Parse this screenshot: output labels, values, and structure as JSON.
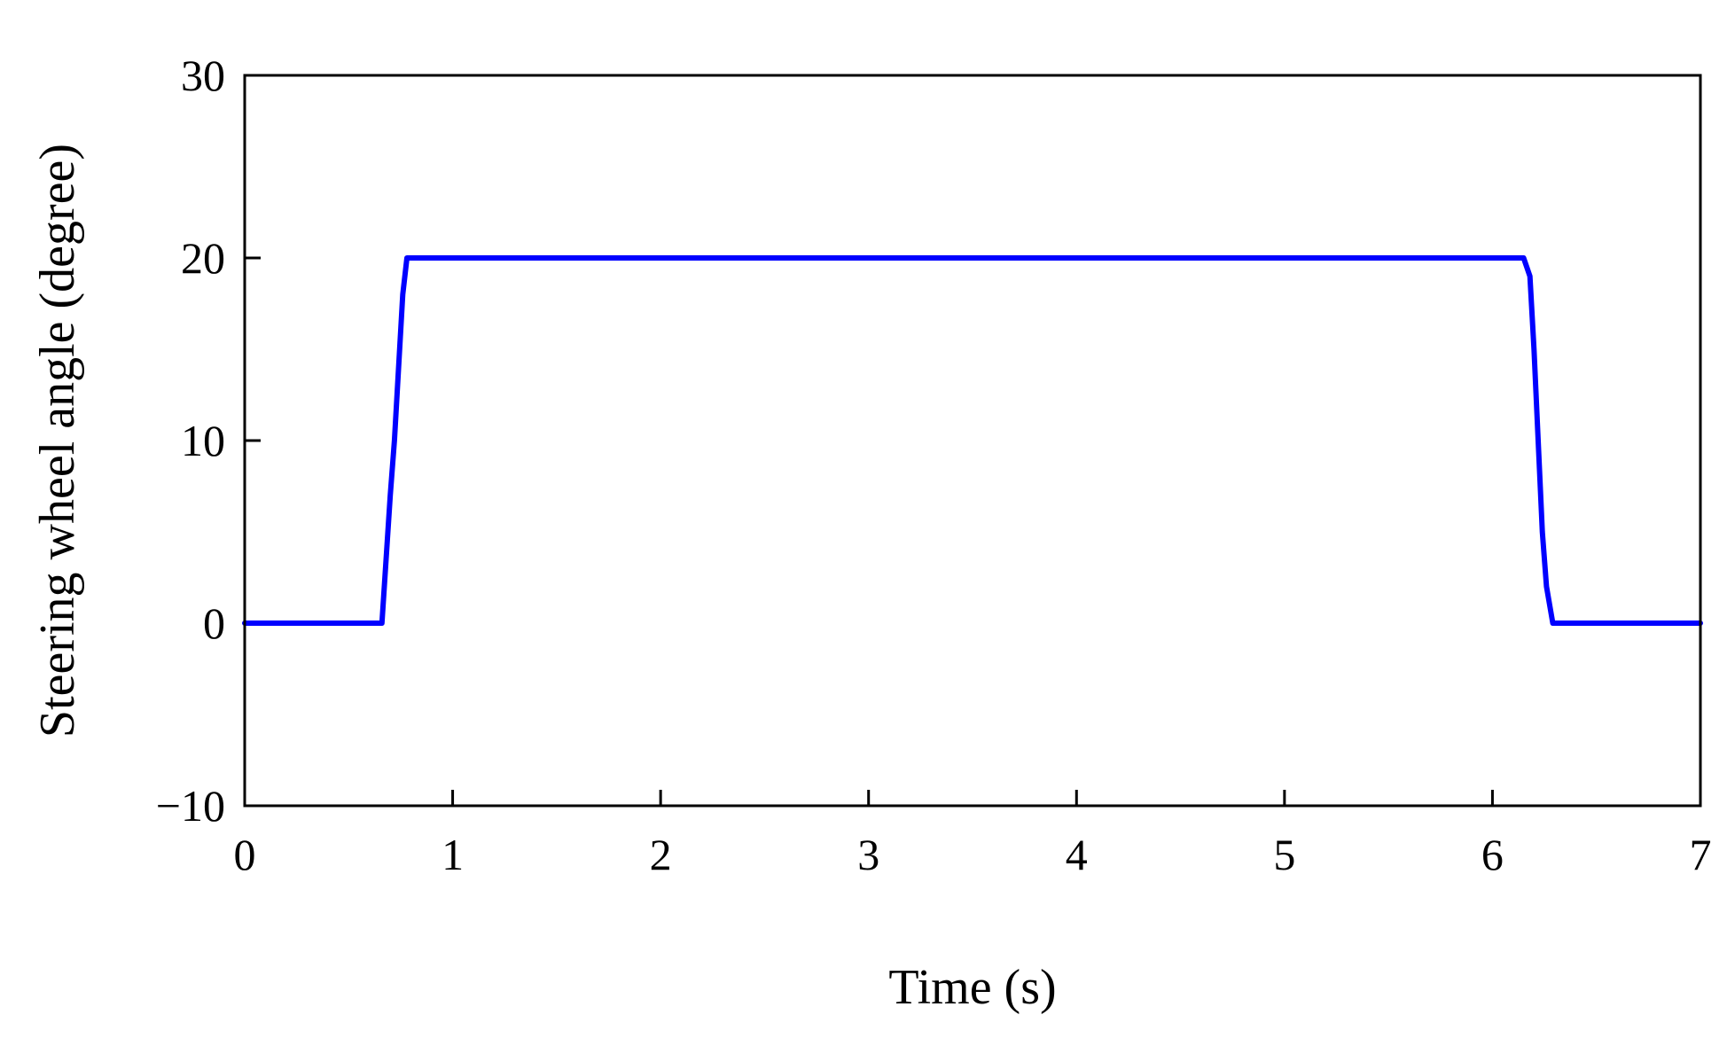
{
  "chart_data": {
    "type": "line",
    "title": "",
    "xlabel": "Time (s)",
    "ylabel": "Steering wheel angle (degree)",
    "xlim": [
      0,
      7
    ],
    "ylim": [
      -10,
      30
    ],
    "xticks": [
      0,
      1,
      2,
      3,
      4,
      5,
      6,
      7
    ],
    "xtick_labels": [
      "0",
      "1",
      "2",
      "3",
      "4",
      "5",
      "6",
      "7"
    ],
    "yticks": [
      -10,
      0,
      10,
      20,
      30
    ],
    "ytick_labels": [
      "−10",
      "0",
      "10",
      "20",
      "30"
    ],
    "grid": false,
    "legend": "none",
    "series": [
      {
        "color": "#0000ff",
        "x": [
          0,
          0.66,
          0.7,
          0.72,
          0.74,
          0.76,
          0.78,
          0.8,
          6.15,
          6.18,
          6.2,
          6.22,
          6.24,
          6.26,
          6.29,
          7
        ],
        "y": [
          0,
          0,
          7,
          10,
          14,
          18,
          20,
          20,
          20,
          19,
          15,
          10,
          5,
          2,
          0,
          0
        ]
      }
    ]
  }
}
